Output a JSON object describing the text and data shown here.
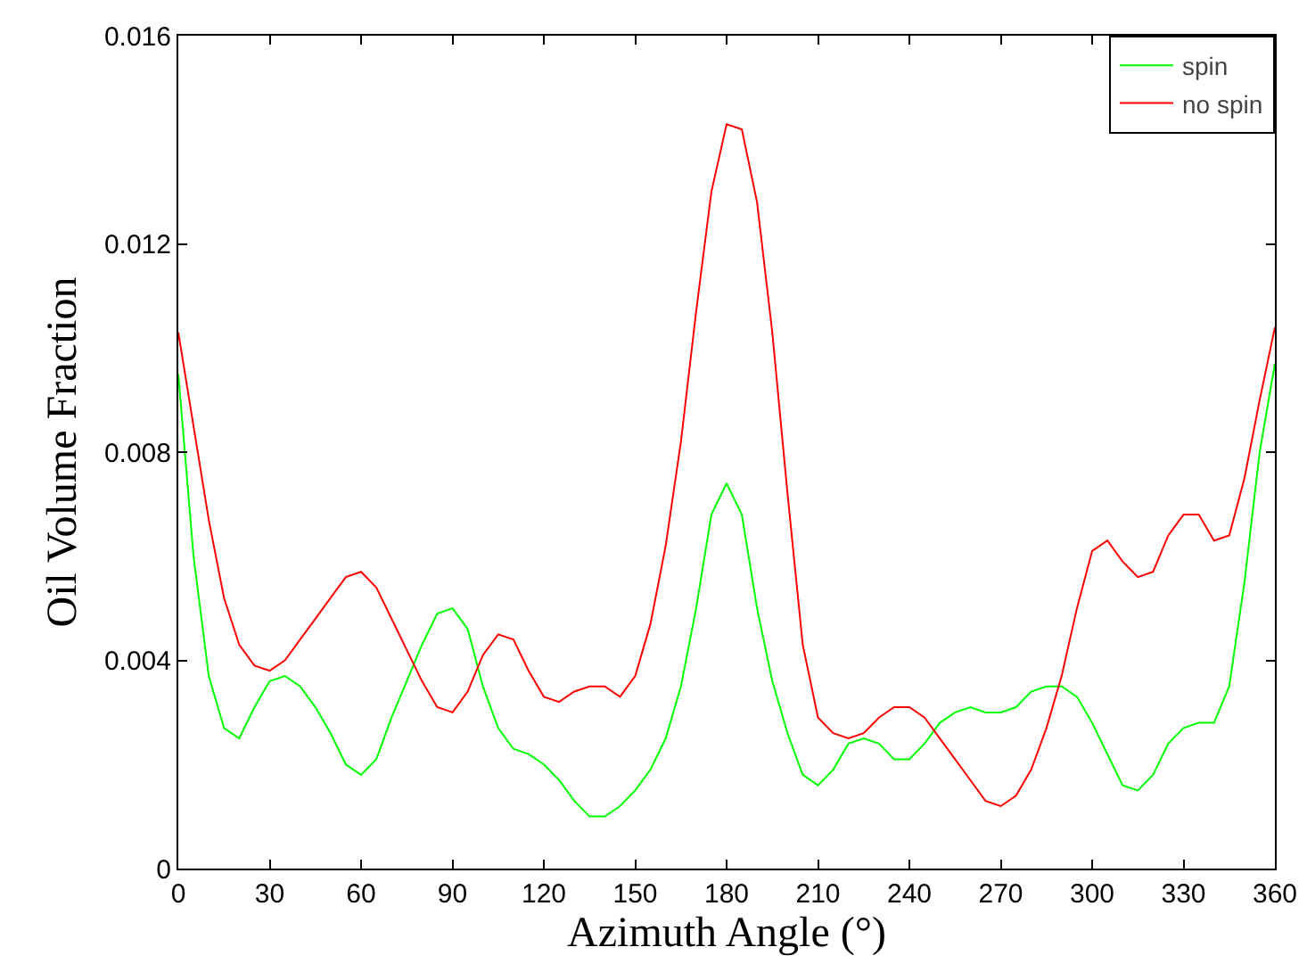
{
  "chart_data": {
    "type": "line",
    "xlabel": "Azimuth Angle (°)",
    "ylabel": "Oil Volume Fraction",
    "x": [
      0,
      5,
      10,
      15,
      20,
      25,
      30,
      35,
      40,
      45,
      50,
      55,
      60,
      65,
      70,
      75,
      80,
      85,
      90,
      95,
      100,
      105,
      110,
      115,
      120,
      125,
      130,
      135,
      140,
      145,
      150,
      155,
      160,
      165,
      170,
      175,
      180,
      185,
      190,
      195,
      200,
      205,
      210,
      215,
      220,
      225,
      230,
      235,
      240,
      245,
      250,
      255,
      260,
      265,
      270,
      275,
      280,
      285,
      290,
      295,
      300,
      305,
      310,
      315,
      320,
      325,
      330,
      335,
      340,
      345,
      350,
      355,
      360
    ],
    "series": [
      {
        "name": "spin",
        "color": "#00ff00",
        "values": [
          0.0095,
          0.006,
          0.0037,
          0.0027,
          0.0025,
          0.0031,
          0.0036,
          0.0037,
          0.0035,
          0.0031,
          0.0026,
          0.002,
          0.0018,
          0.0021,
          0.0029,
          0.0036,
          0.0043,
          0.0049,
          0.005,
          0.0046,
          0.0035,
          0.0027,
          0.0023,
          0.0022,
          0.002,
          0.0017,
          0.0013,
          0.001,
          0.001,
          0.0012,
          0.0015,
          0.0019,
          0.0025,
          0.0035,
          0.005,
          0.0068,
          0.0074,
          0.0068,
          0.005,
          0.0036,
          0.0026,
          0.0018,
          0.0016,
          0.0019,
          0.0024,
          0.0025,
          0.0024,
          0.0021,
          0.0021,
          0.0024,
          0.0028,
          0.003,
          0.0031,
          0.003,
          0.003,
          0.0031,
          0.0034,
          0.0035,
          0.0035,
          0.0033,
          0.0028,
          0.0022,
          0.0016,
          0.0015,
          0.0018,
          0.0024,
          0.0027,
          0.0028,
          0.0028,
          0.0035,
          0.0055,
          0.008,
          0.0097
        ]
      },
      {
        "name": "no spin",
        "color": "#ff0000",
        "values": [
          0.0103,
          0.0085,
          0.0067,
          0.0052,
          0.0043,
          0.0039,
          0.0038,
          0.004,
          0.0044,
          0.0048,
          0.0052,
          0.0056,
          0.0057,
          0.0054,
          0.0048,
          0.0042,
          0.0036,
          0.0031,
          0.003,
          0.0034,
          0.0041,
          0.0045,
          0.0044,
          0.0038,
          0.0033,
          0.0032,
          0.0034,
          0.0035,
          0.0035,
          0.0033,
          0.0037,
          0.0047,
          0.0062,
          0.0082,
          0.0107,
          0.013,
          0.0143,
          0.0142,
          0.0128,
          0.0103,
          0.0072,
          0.0043,
          0.0029,
          0.0026,
          0.0025,
          0.0026,
          0.0029,
          0.0031,
          0.0031,
          0.0029,
          0.0025,
          0.0021,
          0.0017,
          0.0013,
          0.0012,
          0.0014,
          0.0019,
          0.0027,
          0.0037,
          0.005,
          0.0061,
          0.0063,
          0.0059,
          0.0056,
          0.0057,
          0.0064,
          0.0068,
          0.0068,
          0.0063,
          0.0064,
          0.0075,
          0.009,
          0.0104
        ]
      }
    ],
    "xlim": [
      0,
      360
    ],
    "xticks": [
      0,
      30,
      60,
      90,
      120,
      150,
      180,
      210,
      240,
      270,
      300,
      330,
      360
    ],
    "ylim": [
      0,
      0.016
    ],
    "yticks": [
      0,
      0.004,
      0.008,
      0.012,
      0.016
    ],
    "grid": false,
    "legend": "top right",
    "marker": "none",
    "line_style": "solid"
  }
}
